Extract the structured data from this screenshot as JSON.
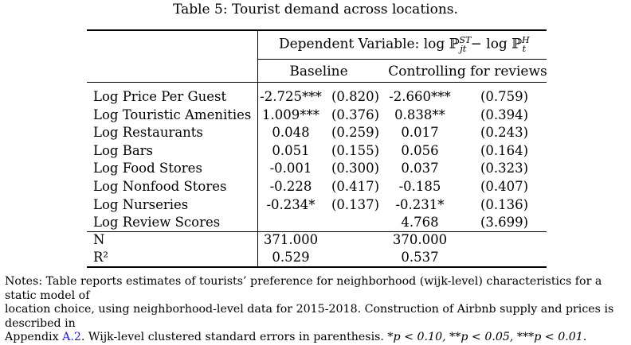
{
  "caption": "Table 5: Tourist demand across locations.",
  "dependent_variable_text": "Dependent Variable: log ℙ",
  "dependent_variable_minus": " − log ℙ",
  "dep_sup1": "ST",
  "dep_sub1": "jt",
  "dep_sup2": "H",
  "dep_sub2": "t",
  "groups": [
    "Baseline",
    "Controlling for reviews"
  ],
  "rows": [
    {
      "label": "Log Price Per Guest",
      "b1": "-2.725***",
      "se1": "(0.820)",
      "b2": "-2.660***",
      "se2": "(0.759)"
    },
    {
      "label": "Log Touristic Amenities",
      "b1": "1.009***",
      "se1": "(0.376)",
      "b2": "0.838**",
      "se2": "(0.394)"
    },
    {
      "label": "Log Restaurants",
      "b1": "0.048",
      "se1": "(0.259)",
      "b2": "0.017",
      "se2": "(0.243)"
    },
    {
      "label": "Log Bars",
      "b1": "0.051",
      "se1": "(0.155)",
      "b2": "0.056",
      "se2": "(0.164)"
    },
    {
      "label": "Log Food Stores",
      "b1": "-0.001",
      "se1": "(0.300)",
      "b2": "0.037",
      "se2": "(0.323)"
    },
    {
      "label": "Log Nonfood Stores",
      "b1": "-0.228",
      "se1": "(0.417)",
      "b2": "-0.185",
      "se2": "(0.407)"
    },
    {
      "label": "Log Nurseries",
      "b1": "-0.234*",
      "se1": "(0.137)",
      "b2": "-0.231*",
      "se2": "(0.136)"
    },
    {
      "label": "Log Review Scores",
      "b1": "",
      "se1": "",
      "b2": "4.768",
      "se2": "(3.699)"
    }
  ],
  "stats": [
    {
      "label": "N",
      "v1": "371.000",
      "v2": "370.000"
    },
    {
      "label": "R²",
      "v1": "0.529",
      "v2": "0.537"
    }
  ],
  "notes": {
    "line1": "Notes: Table reports estimates of tourists’ preference for neighborhood (wijk-level) characteristics for a static model of",
    "line2": "location choice, using neighborhood-level data for 2015-2018. Construction of Airbnb supply and prices is described in",
    "line3_pre": "Appendix ",
    "line3_ref": "A.2",
    "line3_post": ". Wijk-level clustered standard errors in parenthesis. *",
    "sig1": "p < 0.10, **",
    "sig2": "p < 0.05, ***",
    "sig3": "p < 0.01."
  }
}
